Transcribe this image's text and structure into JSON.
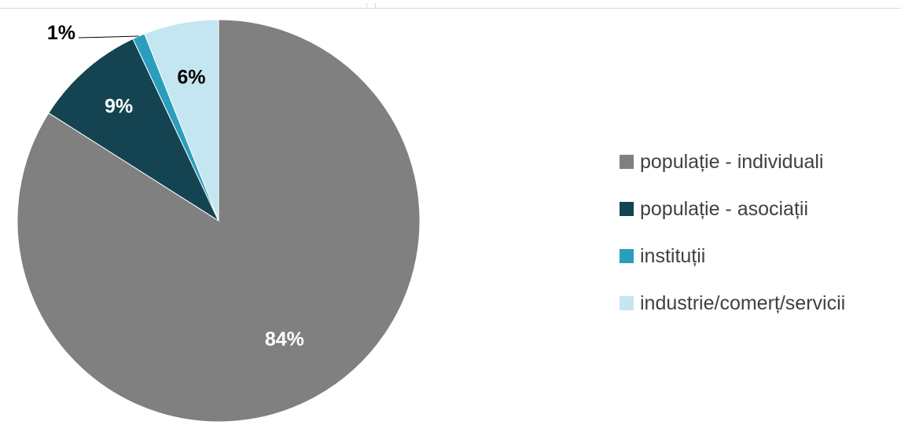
{
  "chart_data": {
    "type": "pie",
    "categories": [
      "populație - individuali",
      "populație - asociații",
      "instituții",
      "industrie/comerț/servicii"
    ],
    "values": [
      84,
      9,
      1,
      6
    ],
    "data_labels": [
      "84%",
      "9%",
      "1%",
      "6%"
    ],
    "colors": [
      "#808080",
      "#144451",
      "#2b9ebd",
      "#c3e6f0"
    ],
    "legend_placement": "right",
    "start_angle": "12 o'clock, counter-clockwise order of series from the right"
  }
}
